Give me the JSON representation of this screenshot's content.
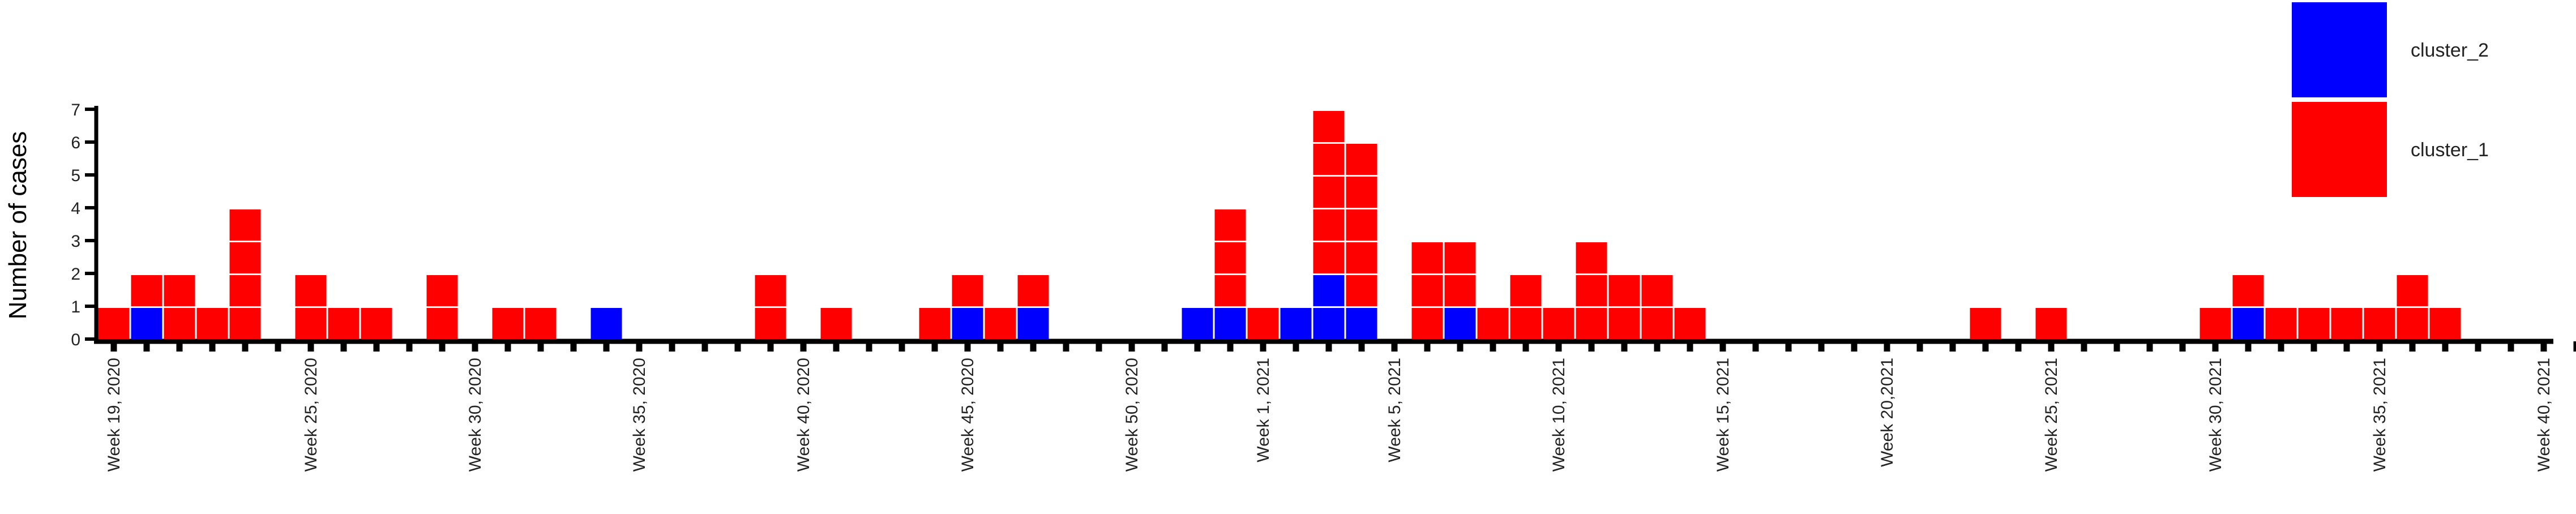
{
  "chart_data": {
    "type": "bar",
    "stacked": true,
    "ylabel": "Number of cases",
    "xlabel": "",
    "ylim": [
      0,
      7
    ],
    "y_ticks": [
      0,
      1,
      2,
      3,
      4,
      5,
      6,
      7
    ],
    "x_tick_labels": [
      {
        "label": "Week 19, 2020",
        "week": 19
      },
      {
        "label": "Week 25, 2020",
        "week": 25
      },
      {
        "label": "Week 30, 2020",
        "week": 30
      },
      {
        "label": "Week 35, 2020",
        "week": 35
      },
      {
        "label": "Week 40, 2020",
        "week": 40
      },
      {
        "label": "Week 45, 2020",
        "week": 45
      },
      {
        "label": "Week 50, 2020",
        "week": 50
      },
      {
        "label": "Week 1,  2021",
        "week": 54
      },
      {
        "label": "Week 5,  2021",
        "week": 58
      },
      {
        "label": "Week 10, 2021",
        "week": 63
      },
      {
        "label": "Week 15, 2021",
        "week": 68
      },
      {
        "label": "Week 20,2021",
        "week": 73
      },
      {
        "label": "Week 25, 2021",
        "week": 78
      },
      {
        "label": "Week 30, 2021",
        "week": 83
      },
      {
        "label": "Week 35, 2021",
        "week": 88
      },
      {
        "label": "Week 40, 2021",
        "week": 93
      }
    ],
    "x_start": 19,
    "x_end": 94,
    "series": [
      {
        "name": "cluster 2",
        "color": "#0000ff",
        "values": [
          [
            20,
            1
          ],
          [
            34,
            1
          ],
          [
            45,
            1
          ],
          [
            47,
            1
          ],
          [
            52,
            1
          ],
          [
            53,
            1
          ],
          [
            55,
            1
          ],
          [
            56,
            2
          ],
          [
            57,
            1
          ],
          [
            60,
            1
          ],
          [
            84,
            1
          ]
        ]
      },
      {
        "name": "cluster 1",
        "color": "#ff0000",
        "values": [
          [
            19,
            1
          ],
          [
            20,
            1
          ],
          [
            21,
            2
          ],
          [
            22,
            1
          ],
          [
            23,
            4
          ],
          [
            25,
            2
          ],
          [
            26,
            1
          ],
          [
            27,
            1
          ],
          [
            29,
            2
          ],
          [
            31,
            1
          ],
          [
            32,
            1
          ],
          [
            39,
            2
          ],
          [
            41,
            1
          ],
          [
            44,
            1
          ],
          [
            45,
            1
          ],
          [
            46,
            1
          ],
          [
            47,
            1
          ],
          [
            53,
            3
          ],
          [
            54,
            1
          ],
          [
            56,
            5
          ],
          [
            57,
            5
          ],
          [
            59,
            3
          ],
          [
            60,
            2
          ],
          [
            61,
            1
          ],
          [
            62,
            2
          ],
          [
            63,
            1
          ],
          [
            64,
            3
          ],
          [
            65,
            2
          ],
          [
            66,
            2
          ],
          [
            67,
            1
          ],
          [
            76,
            1
          ],
          [
            78,
            1
          ],
          [
            83,
            1
          ],
          [
            84,
            1
          ],
          [
            85,
            1
          ],
          [
            86,
            1
          ],
          [
            87,
            1
          ],
          [
            88,
            1
          ],
          [
            89,
            2
          ],
          [
            90,
            1
          ]
        ]
      }
    ],
    "legend": {
      "placement": "top-right",
      "entries": [
        {
          "label": "cluster_2",
          "color": "#0000ff"
        },
        {
          "label": "cluster_1",
          "color": "#ff0000"
        }
      ]
    },
    "grid": false
  }
}
